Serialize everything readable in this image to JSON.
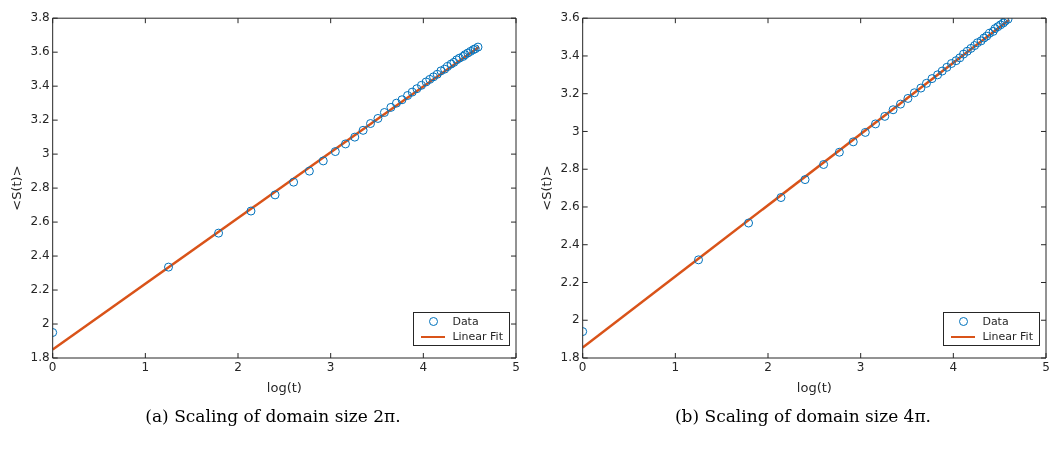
{
  "chart_data": [
    {
      "type": "scatter",
      "title": "(a) Scaling of domain size 2π.",
      "xlabel": "log(t)",
      "ylabel": "<S(t)>",
      "xlim": [
        0,
        5
      ],
      "xticks": [
        0,
        1,
        2,
        3,
        4,
        5
      ],
      "ylim": [
        1.8,
        3.8
      ],
      "yticks": [
        1.8,
        2,
        2.2,
        2.4,
        2.6,
        2.8,
        3,
        3.2,
        3.4,
        3.6,
        3.8
      ],
      "grid": false,
      "legend": "bottom right",
      "series": [
        {
          "name": "Data",
          "type": "scatter",
          "marker": "circle",
          "color": "#0072bd",
          "x": [
            0,
            1.25,
            1.79,
            2.14,
            2.4,
            2.6,
            2.77,
            2.92,
            3.05,
            3.16,
            3.26,
            3.35,
            3.43,
            3.51,
            3.58,
            3.65,
            3.71,
            3.77,
            3.83,
            3.88,
            3.93,
            3.98,
            4.03,
            4.07,
            4.11,
            4.15,
            4.19,
            4.23,
            4.26,
            4.3,
            4.33,
            4.36,
            4.39,
            4.43,
            4.45,
            4.48,
            4.51,
            4.54,
            4.56,
            4.59
          ],
          "values": [
            1.95,
            2.335,
            2.535,
            2.665,
            2.76,
            2.835,
            2.9,
            2.96,
            3.015,
            3.06,
            3.1,
            3.14,
            3.18,
            3.21,
            3.245,
            3.275,
            3.3,
            3.32,
            3.345,
            3.365,
            3.385,
            3.405,
            3.425,
            3.44,
            3.455,
            3.47,
            3.49,
            3.5,
            3.515,
            3.53,
            3.54,
            3.555,
            3.565,
            3.575,
            3.585,
            3.595,
            3.605,
            3.615,
            3.62,
            3.63
          ]
        },
        {
          "name": "Linear Fit",
          "type": "line",
          "marker": "none",
          "line_style": "solid",
          "color": "#d95319",
          "x": [
            0,
            4.6
          ],
          "values": [
            1.85,
            3.63
          ]
        }
      ]
    },
    {
      "type": "scatter",
      "title": "(b) Scaling of domain size 4π.",
      "xlabel": "log(t)",
      "ylabel": "<S(t)>",
      "xlim": [
        0,
        5
      ],
      "xticks": [
        0,
        1,
        2,
        3,
        4,
        5
      ],
      "ylim": [
        1.8,
        3.6
      ],
      "yticks": [
        1.8,
        2,
        2.2,
        2.4,
        2.6,
        2.8,
        3,
        3.2,
        3.4,
        3.6
      ],
      "grid": false,
      "legend": "bottom right",
      "series": [
        {
          "name": "Data",
          "type": "scatter",
          "marker": "circle",
          "color": "#0072bd",
          "x": [
            0,
            1.25,
            1.79,
            2.14,
            2.4,
            2.6,
            2.77,
            2.92,
            3.05,
            3.16,
            3.26,
            3.35,
            3.43,
            3.51,
            3.58,
            3.65,
            3.71,
            3.77,
            3.83,
            3.88,
            3.93,
            3.98,
            4.03,
            4.07,
            4.11,
            4.15,
            4.19,
            4.23,
            4.26,
            4.3,
            4.33,
            4.36,
            4.39,
            4.43,
            4.45,
            4.48,
            4.51,
            4.54,
            4.56,
            4.59
          ],
          "values": [
            1.94,
            2.32,
            2.515,
            2.65,
            2.745,
            2.825,
            2.89,
            2.945,
            2.995,
            3.04,
            3.08,
            3.115,
            3.145,
            3.175,
            3.205,
            3.23,
            3.255,
            3.28,
            3.3,
            3.32,
            3.34,
            3.36,
            3.375,
            3.39,
            3.41,
            3.425,
            3.44,
            3.455,
            3.47,
            3.48,
            3.495,
            3.505,
            3.52,
            3.53,
            3.545,
            3.555,
            3.565,
            3.575,
            3.585,
            3.595
          ]
        },
        {
          "name": "Linear Fit",
          "type": "line",
          "marker": "none",
          "line_style": "solid",
          "color": "#d95319",
          "x": [
            0,
            4.6
          ],
          "values": [
            1.855,
            3.59
          ]
        }
      ]
    }
  ]
}
